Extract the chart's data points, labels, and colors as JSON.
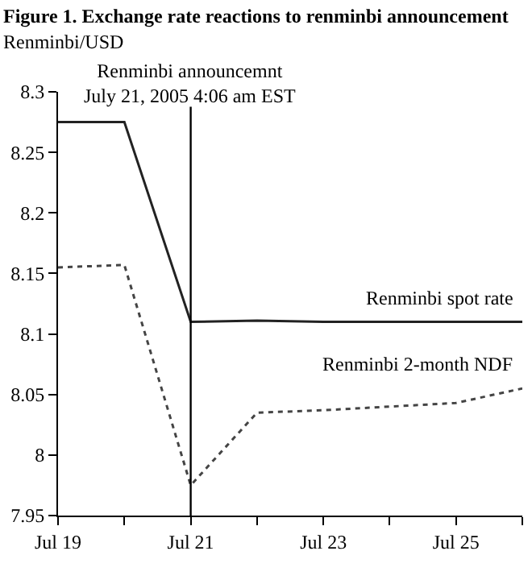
{
  "chart_data": {
    "type": "line",
    "title": "Figure 1. Exchange rate reactions to renminbi announcement",
    "ylabel": "Renminbi/USD",
    "x": [
      "2005-07-19",
      "2005-07-20",
      "2005-07-21",
      "2005-07-22",
      "2005-07-23",
      "2005-07-24",
      "2005-07-25",
      "2005-07-26"
    ],
    "series": [
      {
        "name": "Renminbi spot rate",
        "color": "#222222",
        "line_style": "solid",
        "values": [
          8.275,
          8.275,
          8.11,
          8.111,
          8.11,
          8.11,
          8.11,
          8.11
        ]
      },
      {
        "name": "Renminbi 2-month NDF",
        "color": "#444444",
        "line_style": "dotted",
        "values": [
          8.155,
          8.157,
          7.975,
          8.035,
          8.037,
          8.04,
          8.043,
          8.055
        ]
      }
    ],
    "xlim": [
      "2005-07-19",
      "2005-07-26"
    ],
    "xticks": [
      {
        "value": "2005-07-19",
        "label": "Jul 19"
      },
      {
        "value": "2005-07-20",
        "label": null
      },
      {
        "value": "2005-07-21",
        "label": "Jul 21"
      },
      {
        "value": "2005-07-22",
        "label": null
      },
      {
        "value": "2005-07-23",
        "label": "Jul 23"
      },
      {
        "value": "2005-07-24",
        "label": null
      },
      {
        "value": "2005-07-25",
        "label": "Jul 25"
      },
      {
        "value": "2005-07-26",
        "label": null
      }
    ],
    "ylim": [
      7.95,
      8.3
    ],
    "yticks": [
      7.95,
      8,
      8.05,
      8.1,
      8.15,
      8.2,
      8.25,
      8.3
    ],
    "ref_lines": [
      {
        "axis": "x",
        "value": "2005-07-21",
        "label": "Renminbi announcemnt\nJuly 21, 2005 4:06 am EST",
        "color": "#000000"
      }
    ],
    "grid": false,
    "legend": false
  }
}
